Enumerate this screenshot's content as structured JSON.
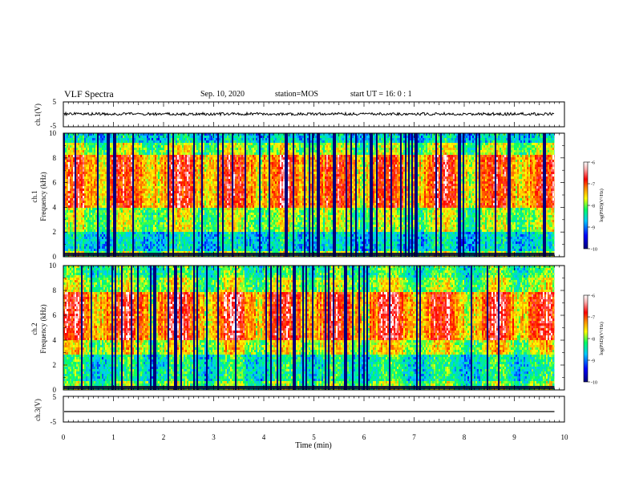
{
  "header": {
    "title": "VLF Spectra",
    "date": "Sep. 10, 2020",
    "station": "station=MOS",
    "start": "start  UT =   16: 0  : 1"
  },
  "chart_data": [
    {
      "type": "line",
      "panel": "ch1-waveform",
      "ylabel": "ch.1(V)",
      "ylim": [
        -5,
        5
      ],
      "yticks": [
        "5",
        "-5"
      ],
      "xlim": [
        0,
        10
      ],
      "series": [
        {
          "approx_level": 0,
          "data_extent_max_min": 9.8
        }
      ]
    },
    {
      "type": "heatmap",
      "panel": "ch1-spectrogram",
      "ylabel_line1": "ch.1",
      "ylabel_line2": "Frequency (kHz)",
      "ylim": [
        0,
        10
      ],
      "yticks": [
        "0",
        "2",
        "4",
        "6",
        "8",
        "10"
      ],
      "xlim": [
        0,
        10
      ],
      "colorbar": {
        "label": "log(PSD)(V²/Hz)",
        "range": [
          -10,
          -6
        ],
        "ticks": [
          "-6",
          "-7",
          "-8",
          "-9",
          "-10"
        ]
      }
    },
    {
      "type": "heatmap",
      "panel": "ch2-spectrogram",
      "ylabel_line1": "ch.2",
      "ylabel_line2": "Frequency (kHz)",
      "ylim": [
        0,
        10
      ],
      "yticks": [
        "0",
        "2",
        "4",
        "6",
        "8",
        "10"
      ],
      "xlim": [
        0,
        10
      ],
      "colorbar": {
        "label": "log(PSD)(V²/Hz)",
        "range": [
          -10,
          -6
        ],
        "ticks": [
          "-6",
          "-7",
          "-8",
          "-9",
          "-10"
        ]
      }
    },
    {
      "type": "line",
      "panel": "ch3-waveform",
      "ylabel": "ch.3(V)",
      "ylim": [
        -5,
        5
      ],
      "yticks": [
        "5",
        "-5"
      ],
      "xlim": [
        0,
        10
      ],
      "series": [
        {
          "approx_level": -1.2,
          "data_extent_max_min": 9.8
        }
      ]
    }
  ],
  "xaxis": {
    "label": "Time (min)",
    "ticks": [
      "0",
      "1",
      "2",
      "3",
      "4",
      "5",
      "6",
      "7",
      "8",
      "9",
      "10"
    ]
  },
  "colors": {
    "palette": [
      "#00007a",
      "#0000ff",
      "#00c8ff",
      "#00ff64",
      "#ffff00",
      "#ff8800",
      "#ff0000",
      "#ffffff"
    ]
  }
}
